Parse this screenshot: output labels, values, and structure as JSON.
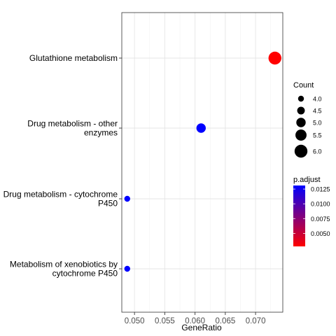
{
  "chart_data": {
    "type": "scatter",
    "xlabel": "GeneRatio",
    "ylabel": "",
    "xlim": [
      0.0479,
      0.0745
    ],
    "x_ticks": [
      0.05,
      0.055,
      0.06,
      0.065,
      0.07
    ],
    "x_tick_labels": [
      "0.050",
      "0.055",
      "0.060",
      "0.065",
      "0.070"
    ],
    "grid": true,
    "categories": [
      [
        "Glutathione metabolism"
      ],
      [
        "Drug metabolism - other",
        "enzymes"
      ],
      [
        "Drug metabolism - cytochrome",
        "P450"
      ],
      [
        "Metabolism of xenobiotics by",
        "cytochrome P450"
      ]
    ],
    "points": [
      {
        "category_index": 0,
        "gene_ratio": 0.0732,
        "count": 6,
        "p_adjust": 0.0028
      },
      {
        "category_index": 1,
        "gene_ratio": 0.061,
        "count": 5,
        "p_adjust": 0.0131
      },
      {
        "category_index": 2,
        "gene_ratio": 0.0488,
        "count": 4,
        "p_adjust": 0.0131
      },
      {
        "category_index": 3,
        "gene_ratio": 0.0488,
        "count": 4,
        "p_adjust": 0.0131
      }
    ],
    "legend_size": {
      "title": "Count",
      "values": [
        4.0,
        4.5,
        5.0,
        5.5,
        6.0
      ],
      "labels": [
        "4.0",
        "4.5",
        "5.0",
        "5.5",
        "6.0"
      ]
    },
    "legend_color": {
      "title": "p.adjust",
      "range": [
        0.0028,
        0.0131
      ],
      "ticks": [
        0.0125,
        0.01,
        0.0075,
        0.005
      ],
      "labels": [
        "0.0125",
        "0.0100",
        "0.0075",
        "0.0050"
      ],
      "low_color": "#ff0000",
      "high_color": "#0000ff"
    },
    "legend_placement": "right"
  }
}
